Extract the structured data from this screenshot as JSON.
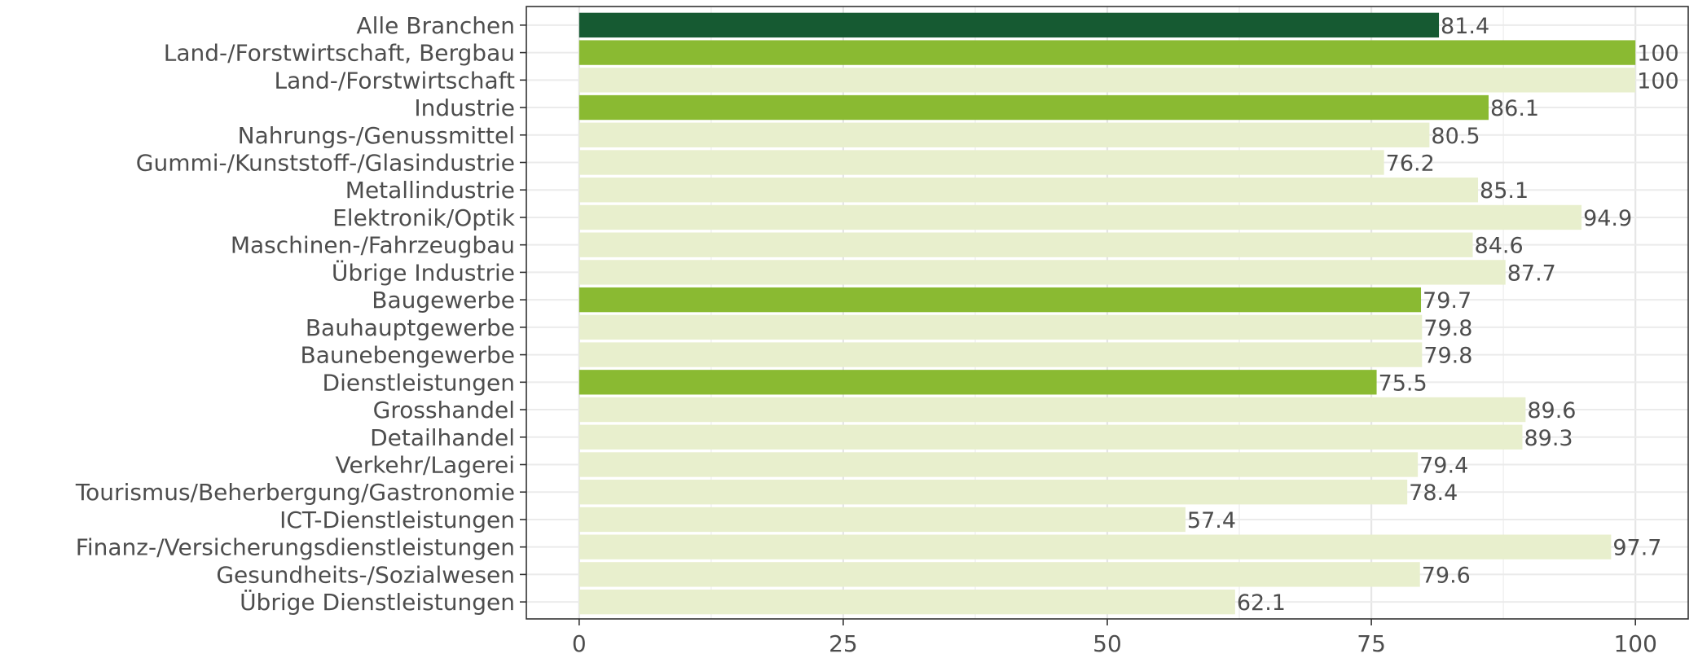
{
  "chart_data": {
    "type": "bar",
    "orientation": "horizontal",
    "title": "",
    "xlabel": "",
    "ylabel": "",
    "xlim": [
      -5,
      105
    ],
    "x_ticks": [
      0,
      25,
      50,
      75,
      100
    ],
    "grid": true,
    "colors": {
      "total": "#165a32",
      "sector": "#8aba32",
      "subsector": "#e8efcd"
    },
    "categories": [
      "Alle Branchen",
      "Land-/Forstwirtschaft, Bergbau",
      "Land-/Forstwirtschaft",
      "Industrie",
      "Nahrungs-/Genussmittel",
      "Gummi-/Kunststoff-/Glasindustrie",
      "Metallindustrie",
      "Elektronik/Optik",
      "Maschinen-/Fahrzeugbau",
      "Übrige Industrie",
      "Baugewerbe",
      "Bauhauptgewerbe",
      "Baunebengewerbe",
      "Dienstleistungen",
      "Grosshandel",
      "Detailhandel",
      "Verkehr/Lagerei",
      "Tourismus/Beherbergung/Gastronomie",
      "ICT-Dienstleistungen",
      "Finanz-/Versicherungsdienstleistungen",
      "Gesundheits-/Sozialwesen",
      "Übrige Dienstleistungen"
    ],
    "values": [
      81.4,
      100,
      100,
      86.1,
      80.5,
      76.2,
      85.1,
      94.9,
      84.6,
      87.7,
      79.7,
      79.8,
      79.8,
      75.5,
      89.6,
      89.3,
      79.4,
      78.4,
      57.4,
      97.7,
      79.6,
      62.1
    ],
    "value_labels": [
      "81.4",
      "100",
      "100",
      "86.1",
      "80.5",
      "76.2",
      "85.1",
      "94.9",
      "84.6",
      "87.7",
      "79.7",
      "79.8",
      "79.8",
      "75.5",
      "89.6",
      "89.3",
      "79.4",
      "78.4",
      "57.4",
      "97.7",
      "79.6",
      "62.1"
    ],
    "levels": [
      "total",
      "sector",
      "subsector",
      "sector",
      "subsector",
      "subsector",
      "subsector",
      "subsector",
      "subsector",
      "subsector",
      "sector",
      "subsector",
      "subsector",
      "sector",
      "subsector",
      "subsector",
      "subsector",
      "subsector",
      "subsector",
      "subsector",
      "subsector",
      "subsector"
    ]
  }
}
